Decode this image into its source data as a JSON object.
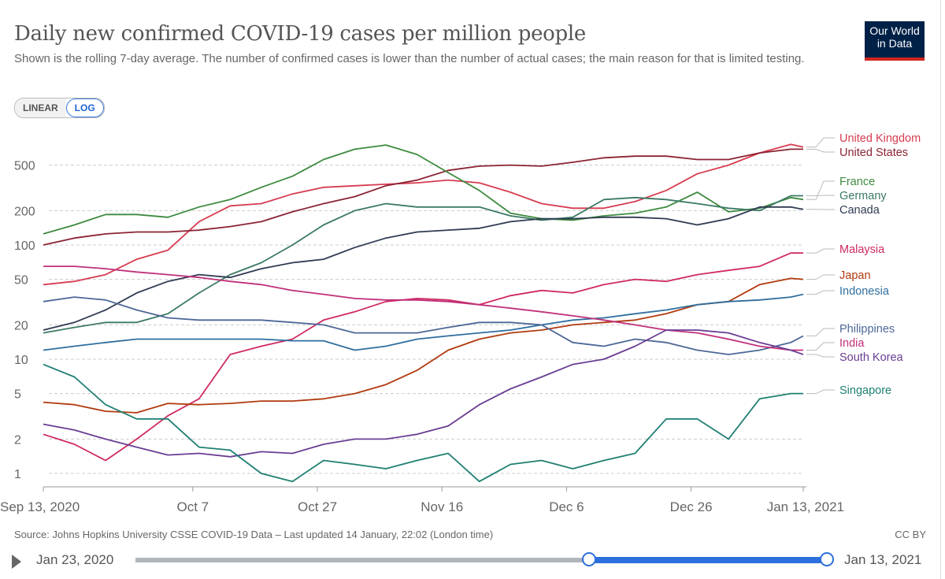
{
  "header": {
    "title": "Daily new confirmed COVID-19 cases per million people",
    "subtitle": "Shown is the rolling 7-day average. The number of confirmed cases is lower than the number of actual cases; the main reason for that is limited testing.",
    "logo_line1": "Our World",
    "logo_line2": "in Data"
  },
  "scale_toggle": {
    "linear": "LINEAR",
    "log": "LOG",
    "selected": "LOG"
  },
  "footer": {
    "source": "Source: Johns Hopkins University CSSE COVID-19 Data – Last updated 14 January, 22:02 (London time)",
    "license": "CC BY"
  },
  "timeline": {
    "start_label": "Jan 23, 2020",
    "end_label": "Jan 13, 2021",
    "range_start_fraction": 0.656,
    "range_end_fraction": 1.0
  },
  "chart_data": {
    "type": "line",
    "title": "Daily new confirmed COVID-19 cases per million people",
    "yscale": "log",
    "ylim": [
      0.75,
      900
    ],
    "yticks": [
      1,
      2,
      5,
      10,
      20,
      50,
      100,
      200,
      500
    ],
    "ytick_labels": [
      "1",
      "2",
      "5",
      "10",
      "20",
      "50",
      "100",
      "200",
      "500"
    ],
    "x_days_since_sep13": [
      0,
      5,
      10,
      15,
      20,
      25,
      30,
      35,
      40,
      45,
      50,
      55,
      60,
      65,
      70,
      75,
      80,
      85,
      90,
      95,
      100,
      105,
      110,
      115,
      120,
      122
    ],
    "xlim_days": [
      0,
      122
    ],
    "xticks": [
      {
        "day": 0,
        "label": "Sep 13, 2020"
      },
      {
        "day": 24,
        "label": "Oct 7"
      },
      {
        "day": 44,
        "label": "Oct 27"
      },
      {
        "day": 64,
        "label": "Nov 16"
      },
      {
        "day": 84,
        "label": "Dec 6"
      },
      {
        "day": 104,
        "label": "Dec 26"
      },
      {
        "day": 122,
        "label": "Jan 13, 2021"
      }
    ],
    "grid": true,
    "legend_placement": "right (line-end labels)",
    "series": [
      {
        "name": "United Kingdom",
        "color": "#d73c50",
        "values": [
          45,
          48,
          55,
          75,
          90,
          160,
          220,
          230,
          280,
          320,
          330,
          340,
          350,
          370,
          350,
          290,
          230,
          210,
          210,
          240,
          300,
          420,
          500,
          640,
          760,
          720
        ]
      },
      {
        "name": "United States",
        "color": "#8b2332",
        "values": [
          100,
          115,
          125,
          130,
          130,
          135,
          145,
          160,
          195,
          230,
          265,
          330,
          370,
          450,
          490,
          500,
          490,
          530,
          580,
          600,
          600,
          560,
          560,
          640,
          690,
          690
        ]
      },
      {
        "name": "France",
        "color": "#3e8a3e",
        "values": [
          125,
          150,
          185,
          185,
          175,
          215,
          250,
          320,
          400,
          560,
          690,
          750,
          620,
          430,
          300,
          190,
          170,
          165,
          180,
          190,
          215,
          290,
          195,
          210,
          260,
          250
        ]
      },
      {
        "name": "Germany",
        "color": "#3b7a64",
        "values": [
          17,
          19,
          21,
          21,
          25,
          38,
          55,
          70,
          100,
          150,
          200,
          230,
          215,
          215,
          215,
          180,
          165,
          175,
          250,
          260,
          250,
          230,
          210,
          200,
          270,
          270
        ]
      },
      {
        "name": "Canada",
        "color": "#2f3b52",
        "values": [
          18,
          21,
          27,
          38,
          48,
          55,
          52,
          62,
          70,
          75,
          95,
          115,
          130,
          135,
          140,
          160,
          170,
          170,
          175,
          175,
          170,
          150,
          170,
          215,
          215,
          205
        ]
      },
      {
        "name": "Malaysia",
        "color": "#cf2a5e",
        "values": [
          2.2,
          1.8,
          1.3,
          2,
          3.2,
          4.5,
          11,
          13,
          15,
          22,
          26,
          32,
          34,
          33,
          30,
          36,
          40,
          38,
          45,
          50,
          48,
          55,
          60,
          65,
          85,
          85
        ]
      },
      {
        "name": "Japan",
        "color": "#b13a0e",
        "values": [
          4.2,
          4,
          3.5,
          3.4,
          4.1,
          4,
          4.1,
          4.3,
          4.3,
          4.5,
          5,
          6,
          8,
          12,
          15,
          17,
          18,
          20,
          21,
          22,
          25,
          30,
          32,
          45,
          51,
          50
        ]
      },
      {
        "name": "Indonesia",
        "color": "#2f6e9e",
        "values": [
          12,
          13,
          14,
          15,
          15,
          15,
          15,
          15,
          14.5,
          14.5,
          12,
          13,
          15,
          16,
          17,
          18,
          20,
          22,
          23,
          25,
          27,
          30,
          32,
          33,
          35,
          37
        ]
      },
      {
        "name": "Philippines",
        "color": "#4d6797",
        "values": [
          32,
          35,
          33,
          27,
          23,
          22,
          22,
          22,
          21,
          20,
          17,
          17,
          17,
          19,
          21,
          21,
          20,
          14,
          13,
          15,
          14,
          12,
          11,
          12,
          14,
          16
        ]
      },
      {
        "name": "India",
        "color": "#c0307a",
        "values": [
          65,
          65,
          62,
          58,
          55,
          52,
          48,
          45,
          40,
          37,
          34,
          33,
          33,
          32,
          30,
          28,
          26,
          24,
          22,
          20,
          18,
          17,
          15,
          13,
          12,
          12
        ]
      },
      {
        "name": "South Korea",
        "color": "#6a3d94",
        "values": [
          2.7,
          2.4,
          2,
          1.7,
          1.45,
          1.5,
          1.4,
          1.55,
          1.5,
          1.8,
          2,
          2,
          2.2,
          2.6,
          4,
          5.5,
          7,
          9,
          10,
          13,
          18,
          18,
          17,
          14,
          12,
          11
        ]
      },
      {
        "name": "Singapore",
        "color": "#1f7f72",
        "values": [
          9,
          7,
          4,
          3,
          3,
          1.7,
          1.6,
          1,
          0.85,
          1.3,
          1.2,
          1.1,
          1.3,
          1.5,
          0.85,
          1.2,
          1.3,
          1.1,
          1.3,
          1.5,
          3,
          3,
          2,
          4.5,
          5,
          5
        ]
      }
    ]
  }
}
